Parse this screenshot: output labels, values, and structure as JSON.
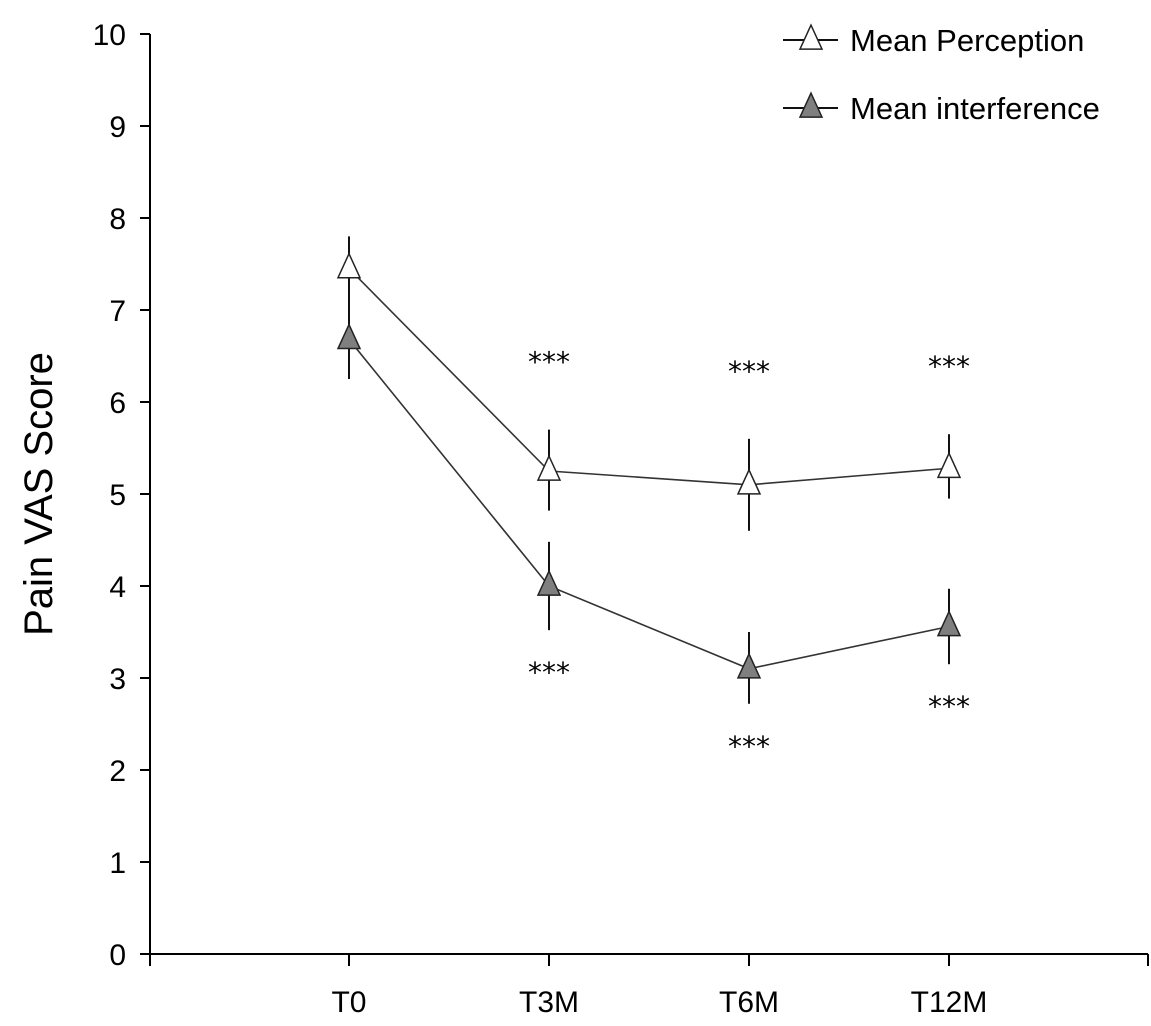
{
  "chart_data": {
    "type": "line",
    "ylabel": "Pain VAS Score",
    "ylim": [
      0,
      10
    ],
    "yticks": [
      "0",
      "1",
      "2",
      "3",
      "4",
      "5",
      "6",
      "7",
      "8",
      "9",
      "10"
    ],
    "categories": [
      "T0",
      "T3M",
      "T6M",
      "T12M"
    ],
    "legend_position": "top-right",
    "grid": false,
    "series": [
      {
        "name": "Mean Perception",
        "marker": "open-triangle",
        "marker_color": "#ffffff",
        "values": [
          7.45,
          5.25,
          5.1,
          5.28
        ],
        "error_low": [
          6.25,
          4.82,
          4.6,
          4.95
        ],
        "error_high": [
          7.8,
          5.7,
          5.6,
          5.65
        ],
        "significance": [
          "",
          "***",
          "***",
          "***"
        ]
      },
      {
        "name": "Mean interference",
        "marker": "filled-triangle",
        "marker_color": "#7f7f7f",
        "values": [
          6.68,
          4.0,
          3.1,
          3.56
        ],
        "error_low": [
          6.25,
          3.52,
          2.72,
          3.15
        ],
        "error_high": [
          7.25,
          4.48,
          3.5,
          3.97
        ],
        "significance": [
          "",
          "***",
          "***",
          "***"
        ]
      }
    ]
  }
}
